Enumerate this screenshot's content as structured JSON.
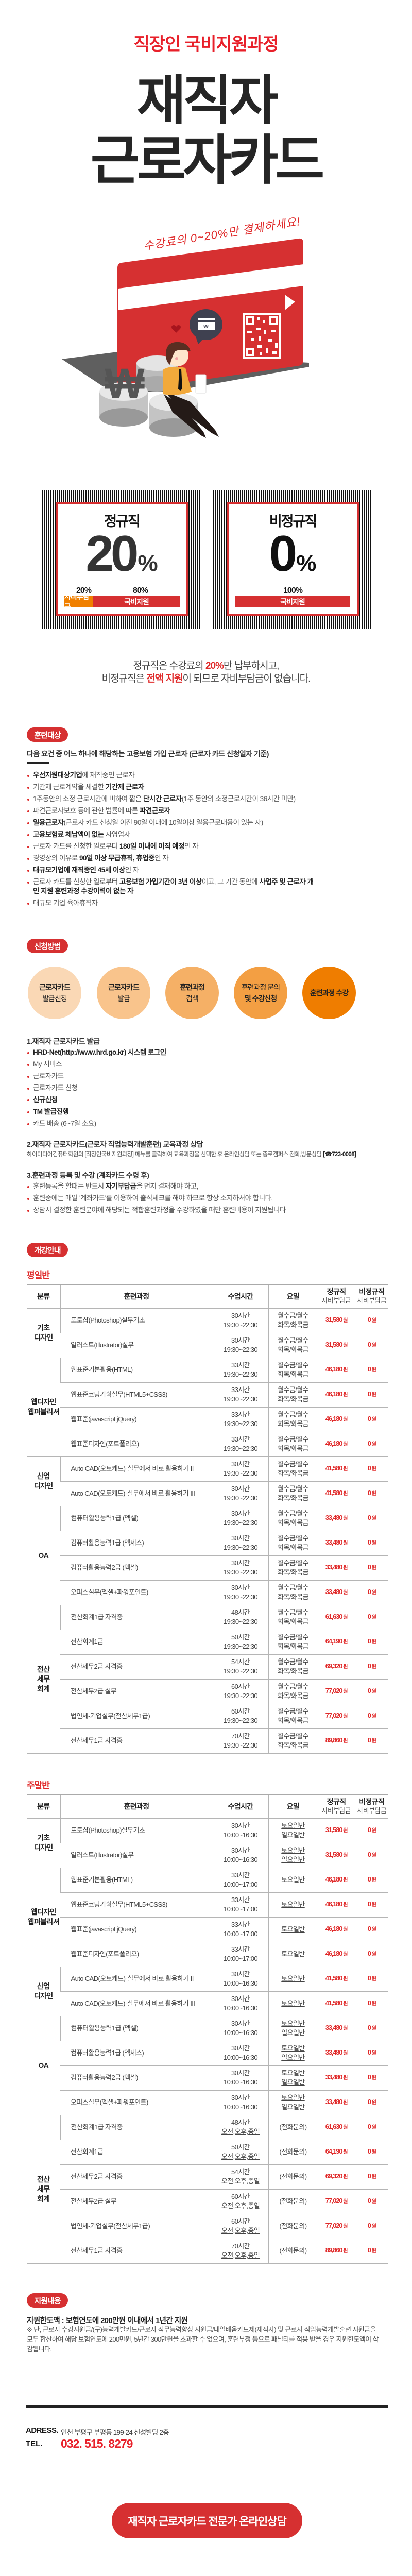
{
  "header": {
    "subtitle": "직장인 국비지원과정",
    "title_line1": "재직자",
    "title_line2": "근로자카드",
    "handwriting": "수강료의 0~20%만 결제하세요!"
  },
  "colors": {
    "brand_red": "#d63031",
    "accent_red": "#e8202a",
    "orange": "#f08000"
  },
  "support_boxes": [
    {
      "title": "정규직",
      "value": "20",
      "unit": "%",
      "split": [
        {
          "pct": "20%",
          "label": "자비부담금",
          "fraction": 0.2,
          "color": "#f08000"
        },
        {
          "pct": "80%",
          "label": "국비지원",
          "fraction": 0.8,
          "color": "#d63031"
        }
      ]
    },
    {
      "title": "비정규직",
      "value": "0",
      "unit": "%",
      "split": [
        {
          "pct": "100%",
          "label": "국비지원",
          "fraction": 1.0,
          "color": "#d63031"
        }
      ]
    }
  ],
  "summary": [
    [
      {
        "t": "정규직은 수강료의 "
      },
      {
        "t": "20%",
        "b": true,
        "r": true
      },
      {
        "t": "만 납부하시고,"
      }
    ],
    [
      {
        "t": "비정규직은 "
      },
      {
        "t": "전액 지원",
        "b": true,
        "r": true
      },
      {
        "t": "이 되므로 자비부담금이 없습니다."
      }
    ]
  ],
  "training_target": {
    "badge": "훈련대상",
    "heading": "다음 요건 중 어느 하나에 해당하는 고용보험 가입 근로자 (근로자 카드 신청일자 기준)",
    "items": [
      [
        {
          "t": "우선지원대상기업",
          "b": true
        },
        {
          "t": "에 재직중인 근로자"
        }
      ],
      [
        {
          "t": "기간제 근로계약을 체결한 "
        },
        {
          "t": "기간제 근로자",
          "b": true
        }
      ],
      [
        {
          "t": "1주동안의 소정 근로시간에 비하여 짧은 "
        },
        {
          "t": "단시간 근로자",
          "b": true
        },
        {
          "t": "(1주 동안의 소정근로시간이 36시간 미만)"
        }
      ],
      [
        {
          "t": "파견근로자보호 등에 관한 법률에 따른 "
        },
        {
          "t": "파견근로자",
          "b": true
        }
      ],
      [
        {
          "t": "일용근로자",
          "b": true
        },
        {
          "t": "(근로자 카드 신청일 이전 90일 이내에 10일이상 일용근로내용이 있는 자)"
        }
      ],
      [
        {
          "t": "고용보험료 체납액이 없는",
          "b": true
        },
        {
          "t": " 자영업자"
        }
      ],
      [
        {
          "t": "근로자 카드를 신청한 일로부터 "
        },
        {
          "t": "180일 이내에 이직 예정",
          "b": true
        },
        {
          "t": "인 자"
        }
      ],
      [
        {
          "t": "경영상의 이유로 "
        },
        {
          "t": "90일 이상 무급휴직, 휴업중",
          "b": true
        },
        {
          "t": "인 자"
        }
      ],
      [
        {
          "t": "대규모기업에 재직중인 45세 이상",
          "b": true
        },
        {
          "t": "인 자"
        }
      ],
      [
        {
          "t": "근로자 카드를 신청한 일로부터 "
        },
        {
          "t": "고용보험 가입기간이 3년 이상",
          "b": true
        },
        {
          "t": "이고, 그 기간 동안에 "
        },
        {
          "t": "사업주 및 근로자 개인 지원 훈련과정 수강이력이 없는 자",
          "b": true
        }
      ],
      [
        {
          "t": "대규모 기업 육아휴직자"
        }
      ]
    ]
  },
  "apply": {
    "badge": "신청방법",
    "steps": [
      {
        "lines": [
          {
            "t": "근로자카드",
            "b": true
          },
          {
            "t": "발급신청"
          }
        ],
        "color": "#fad8b5"
      },
      {
        "lines": [
          {
            "t": "근로자카드",
            "b": true
          },
          {
            "t": "발급"
          }
        ],
        "color": "#f9c48c"
      },
      {
        "lines": [
          {
            "t": "훈련과정",
            "b": true
          },
          {
            "t": "검색"
          }
        ],
        "color": "#f5b066"
      },
      {
        "lines": [
          {
            "t": "훈련과정 문의"
          },
          {
            "t": "및 수강신청",
            "b": true
          }
        ],
        "color": "#f39f43"
      },
      {
        "lines": [
          {
            "t": "훈련과정 수강",
            "b": true
          }
        ],
        "color": "#ef7d00"
      }
    ],
    "section1": {
      "heading": "1.재직자 근로자카드 발급",
      "items": [
        [
          {
            "t": "HRD-Net(http://www.hrd.go.kr) 시스템 로그인",
            "b": true
          }
        ],
        [
          {
            "t": "My 서비스"
          }
        ],
        [
          {
            "t": "근로자카드"
          }
        ],
        [
          {
            "t": "근로자카드 신청"
          }
        ],
        [
          {
            "t": "신규신청",
            "b": true
          }
        ],
        [
          {
            "t": "TM 발급진행",
            "b": true
          }
        ],
        [
          {
            "t": "카드 배송 (6~7일 소요)"
          }
        ]
      ]
    },
    "section2": {
      "heading": "2.재직자 근로자카드(근로자 직업능력개발훈련) 교육과정 상담",
      "text": "하이미디어컴퓨터학원의 [직장인국비지원과정] 메뉴를 클릭하여 교육과정을 선택한 후 온라인상담 또는  종로캠퍼스 전화,방문상담 ",
      "phone": "[☎723-0008]"
    },
    "section3": {
      "heading": "3.훈련과정 등록 및 수강 (계좌카드 수령 후)",
      "items": [
        [
          {
            "t": "훈련등록을 할때는 반드시 "
          },
          {
            "t": "자기부담금",
            "b": true
          },
          {
            "t": "을 먼저 결재해야 하고,"
          }
        ],
        [
          {
            "t": "훈련중에는 매일 '계좌카드'를 이용하여 출석체크를 해야 하므로 항상 소지하셔야 합니다."
          }
        ],
        [
          {
            "t": "상담시 결정한 훈련분야에 해당되는 적합훈련과정을 수강하였을 때만 훈련비용이 지원됩니다"
          }
        ]
      ]
    }
  },
  "schedule": {
    "badge": "개강안내",
    "currency_unit": "원",
    "headers": [
      {
        "title": "분류"
      },
      {
        "title": "훈련과정"
      },
      {
        "title": "수업시간"
      },
      {
        "title": "요일"
      },
      {
        "title": "정규직",
        "sub": "자비부담금"
      },
      {
        "title": "비정규직",
        "sub": "자비부담금"
      }
    ],
    "weekday": {
      "label": "평일반",
      "groups": [
        {
          "category": [
            "기초",
            "디자인"
          ],
          "rows": [
            {
              "course": "포토샵(Photoshop)실무기초",
              "hours": "30시간",
              "time": "19:30~22:30",
              "days": [
                "월수금/월수",
                "화목/화목금"
              ],
              "regular": "31,580",
              "nonregular": "0"
            },
            {
              "course": "일러스트(Illustrator)실무",
              "hours": "30시간",
              "time": "19:30~22:30",
              "days": [
                "월수금/월수",
                "화목/화목금"
              ],
              "regular": "31,580",
              "nonregular": "0"
            }
          ]
        },
        {
          "category": [
            "웹디자인",
            "웹퍼블리셔"
          ],
          "rows": [
            {
              "course": "웹표준기본활용(HTML)",
              "hours": "33시간",
              "time": "19:30~22:30",
              "days": [
                "월수금/월수",
                "화목/화목금"
              ],
              "regular": "46,180",
              "nonregular": "0"
            },
            {
              "course": "웹표준코딩기획실무(HTML5+CSS3)",
              "hours": "33시간",
              "time": "19:30~22:30",
              "days": [
                "월수금/월수",
                "화목/화목금"
              ],
              "regular": "46,180",
              "nonregular": "0"
            },
            {
              "course": "웹표준(javascript jQuery)",
              "hours": "33시간",
              "time": "19:30~22:30",
              "days": [
                "월수금/월수",
                "화목/화목금"
              ],
              "regular": "46,180",
              "nonregular": "0"
            },
            {
              "course": "웹표준디자인(포트폴리오)",
              "hours": "33시간",
              "time": "19:30~22:30",
              "days": [
                "월수금/월수",
                "화목/화목금"
              ],
              "regular": "46,180",
              "nonregular": "0"
            }
          ]
        },
        {
          "category": [
            "산업",
            "디자인"
          ],
          "rows": [
            {
              "course": "Auto CAD(오토캐드)-실무에서 바로 활용하기 II",
              "hours": "30시간",
              "time": "19:30~22:30",
              "days": [
                "월수금/월수",
                "화목/화목금"
              ],
              "regular": "41,580",
              "nonregular": "0"
            },
            {
              "course": "Auto CAD(오토캐드)-실무에서 바로 활용하기 III",
              "hours": "30시간",
              "time": "19:30~22:30",
              "days": [
                "월수금/월수",
                "화목/화목금"
              ],
              "regular": "41,580",
              "nonregular": "0"
            }
          ]
        },
        {
          "category": [
            "OA"
          ],
          "rows": [
            {
              "course": "컴퓨터활용능력1급 (엑셀)",
              "hours": "30시간",
              "time": "19:30~22:30",
              "days": [
                "월수금/월수",
                "화목/화목금"
              ],
              "regular": "33,480",
              "nonregular": "0"
            },
            {
              "course": "컴퓨터활용능력1급 (엑세스)",
              "hours": "30시간",
              "time": "19:30~22:30",
              "days": [
                "월수금/월수",
                "화목/화목금"
              ],
              "regular": "33,480",
              "nonregular": "0"
            },
            {
              "course": "컴퓨터활용능력2급 (엑셀)",
              "hours": "30시간",
              "time": "19:30~22:30",
              "days": [
                "월수금/월수",
                "화목/화목금"
              ],
              "regular": "33,480",
              "nonregular": "0"
            },
            {
              "course": "오피스실무(엑셀+파워포인트)",
              "hours": "30시간",
              "time": "19:30~22:30",
              "days": [
                "월수금/월수",
                "화목/화목금"
              ],
              "regular": "33,480",
              "nonregular": "0"
            }
          ]
        },
        {
          "category": [
            "전산",
            "세무",
            "회계"
          ],
          "rows": [
            {
              "course": "전산회계1급 자격증",
              "hours": "48시간",
              "time": "19:30~22:30",
              "days": [
                "월수금/월수",
                "화목/화목금"
              ],
              "regular": "61,630",
              "nonregular": "0"
            },
            {
              "course": "전산회계1급",
              "hours": "50시간",
              "time": "19:30~22:30",
              "days": [
                "월수금/월수",
                "화목/화목금"
              ],
              "regular": "64,190",
              "nonregular": "0"
            },
            {
              "course": "전산세무2급 자격증",
              "hours": "54시간",
              "time": "19:30~22:30",
              "days": [
                "월수금/월수",
                "화목/화목금"
              ],
              "regular": "69,320",
              "nonregular": "0"
            },
            {
              "course": "전산세무2급 실무",
              "hours": "60시간",
              "time": "19:30~22:30",
              "days": [
                "월수금/월수",
                "화목/화목금"
              ],
              "regular": "77,020",
              "nonregular": "0"
            },
            {
              "course": "법인세-기업실무(전산세무1급)",
              "hours": "60시간",
              "time": "19:30~22:30",
              "days": [
                "월수금/월수",
                "화목/화목금"
              ],
              "regular": "77,020",
              "nonregular": "0"
            },
            {
              "course": "전산세무1급 자격증",
              "hours": "70시간",
              "time": "19:30~22:30",
              "days": [
                "월수금/월수",
                "화목/화목금"
              ],
              "regular": "89,860",
              "nonregular": "0"
            }
          ]
        }
      ]
    },
    "weekend": {
      "label": "주말반",
      "groups": [
        {
          "category": [
            "기초",
            "디자인"
          ],
          "rows": [
            {
              "course": "포토샵(Photoshop)실무기초",
              "hours": "30시간",
              "time": "10:00~16:30",
              "days": [
                "토요일반",
                "일요일반"
              ],
              "regular": "31,580",
              "nonregular": "0"
            },
            {
              "course": "일러스트(Illustrator)실무",
              "hours": "30시간",
              "time": "10:00~16:30",
              "days": [
                "토요일반",
                "일요일반"
              ],
              "regular": "31,580",
              "nonregular": "0"
            }
          ]
        },
        {
          "category": [
            "웹디자인",
            "웹퍼블리셔"
          ],
          "rows": [
            {
              "course": "웹표준기본활용(HTML)",
              "hours": "33시간",
              "time": "10:00~17:00",
              "days": [
                "토요일반"
              ],
              "regular": "46,180",
              "nonregular": "0"
            },
            {
              "course": "웹표준코딩기획실무(HTML5+CSS3)",
              "hours": "33시간",
              "time": "10:00~17:00",
              "days": [
                "토요일반"
              ],
              "regular": "46,180",
              "nonregular": "0"
            },
            {
              "course": "웹표준(javascript jQuery)",
              "hours": "33시간",
              "time": "10:00~17:00",
              "days": [
                "토요일반"
              ],
              "regular": "46,180",
              "nonregular": "0"
            },
            {
              "course": "웹표준디자인(포트폴리오)",
              "hours": "33시간",
              "time": "10:00~17:00",
              "days": [
                "토요일반"
              ],
              "regular": "46,180",
              "nonregular": "0"
            }
          ]
        },
        {
          "category": [
            "산업",
            "디자인"
          ],
          "rows": [
            {
              "course": "Auto CAD(오토캐드)-실무에서 바로 활용하기 II",
              "hours": "30시간",
              "time": "10:00~16:30",
              "days": [
                "토요일반"
              ],
              "regular": "41,580",
              "nonregular": "0"
            },
            {
              "course": "Auto CAD(오토캐드)-실무에서 바로 활용하기 III",
              "hours": "30시간",
              "time": "10:00~16:30",
              "days": [
                "토요일반"
              ],
              "regular": "41,580",
              "nonregular": "0"
            }
          ]
        },
        {
          "category": [
            "OA"
          ],
          "rows": [
            {
              "course": "컴퓨터활용능력1급 (엑셀)",
              "hours": "30시간",
              "time": "10:00~16:30",
              "days": [
                "토요일반",
                "일요일반"
              ],
              "regular": "33,480",
              "nonregular": "0"
            },
            {
              "course": "컴퓨터활용능력1급 (엑세스)",
              "hours": "30시간",
              "time": "10:00~16:30",
              "days": [
                "토요일반",
                "일요일반"
              ],
              "regular": "33,480",
              "nonregular": "0"
            },
            {
              "course": "컴퓨터활용능력2급 (엑셀)",
              "hours": "30시간",
              "time": "10:00~16:30",
              "days": [
                "토요일반",
                "일요일반"
              ],
              "regular": "33,480",
              "nonregular": "0"
            },
            {
              "course": "오피스실무(엑셀+파워포인트)",
              "hours": "30시간",
              "time": "10:00~16:30",
              "days": [
                "토요일반",
                "일요일반"
              ],
              "regular": "33,480",
              "nonregular": "0"
            }
          ]
        },
        {
          "category": [
            "전산",
            "세무",
            "회계"
          ],
          "rows": [
            {
              "course": "전산회계1급 자격증",
              "hours": "48시간",
              "time": "오전,오후,종일",
              "days": [
                "(전화문의)"
              ],
              "regular": "61,630",
              "nonregular": "0"
            },
            {
              "course": "전산회계1급",
              "hours": "50시간",
              "time": "오전,오후,종일",
              "days": [
                "(전화문의)"
              ],
              "regular": "64,190",
              "nonregular": "0"
            },
            {
              "course": "전산세무2급 자격증",
              "hours": "54시간",
              "time": "오전,오후,종일",
              "days": [
                "(전화문의)"
              ],
              "regular": "69,320",
              "nonregular": "0"
            },
            {
              "course": "전산세무2급 실무",
              "hours": "60시간",
              "time": "오전,오후,종일",
              "days": [
                "(전화문의)"
              ],
              "regular": "77,020",
              "nonregular": "0"
            },
            {
              "course": "법인세-기업실무(전산세무1급)",
              "hours": "60시간",
              "time": "오전,오후,종일",
              "days": [
                "(전화문의)"
              ],
              "regular": "77,020",
              "nonregular": "0"
            },
            {
              "course": "전산세무1급 자격증",
              "hours": "70시간",
              "time": "오전,오후,종일",
              "days": [
                "(전화문의)"
              ],
              "regular": "89,860",
              "nonregular": "0"
            }
          ]
        }
      ]
    }
  },
  "support": {
    "badge": "지원내용",
    "limit": "지원한도액 : 보험연도에 200만원 이내에서 1년간 지원",
    "note": "※ 단, 근로자 수강지원금/(구)능력개발카드/근로자 직무능력향상 지원금/내일배움카드제(재직자) 및 근로자 직업능력개발훈련 지원금을 모두 합산하여 해당 보험연도에 200만원, 5년간 300만원을 초과할 수 없으며, 훈련부정 등으로 패널티를 적용 받을 경우 지원한도액이 삭감됩니다."
  },
  "footer": {
    "address_label": "ADRESS.",
    "address": "인천 부평구 부평동 199-24 신성빌딩 2층",
    "tel_label": "TEL.",
    "tel": "032. 515. 8279",
    "cta": "재직자 근로자카드 전문가 온라인상담"
  }
}
